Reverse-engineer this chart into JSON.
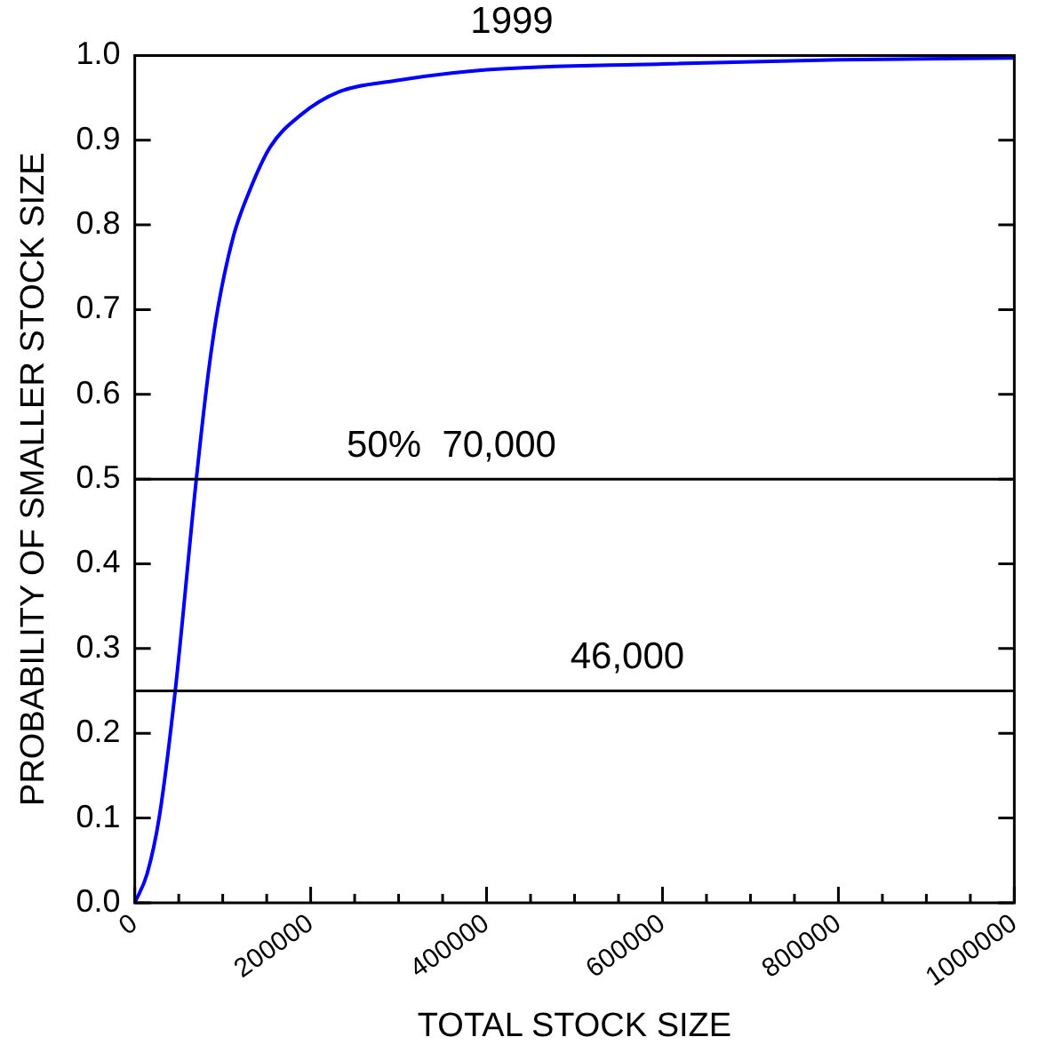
{
  "chart_data": {
    "type": "line",
    "title": "1999",
    "xlabel": "TOTAL STOCK SIZE",
    "ylabel": "PROBABILITY OF SMALLER STOCK SIZE",
    "x": [
      0,
      14000,
      28000,
      46000,
      70000,
      84000,
      94700,
      112000,
      130000,
      154000,
      189000,
      232000,
      295000,
      400000,
      600000,
      800000,
      1000000
    ],
    "series": [
      {
        "color": "#0000ff",
        "values": [
          0,
          0.034,
          0.102,
          0.25,
          0.5,
          0.628,
          0.703,
          0.786,
          0.839,
          0.892,
          0.93,
          0.957,
          0.97,
          0.983,
          0.99,
          0.995,
          0.997
        ]
      }
    ],
    "xlim": [
      0,
      1000000
    ],
    "xticks": [
      0,
      {
        "value": 50000,
        "label": null
      },
      {
        "value": 100000,
        "label": null
      },
      {
        "value": 150000,
        "label": null
      },
      200000,
      {
        "value": 250000,
        "label": null
      },
      {
        "value": 300000,
        "label": null
      },
      {
        "value": 350000,
        "label": null
      },
      400000,
      {
        "value": 450000,
        "label": null
      },
      {
        "value": 500000,
        "label": null
      },
      {
        "value": 550000,
        "label": null
      },
      600000,
      {
        "value": 650000,
        "label": null
      },
      {
        "value": 700000,
        "label": null
      },
      {
        "value": 750000,
        "label": null
      },
      800000,
      {
        "value": 850000,
        "label": null
      },
      {
        "value": 900000,
        "label": null
      },
      {
        "value": 950000,
        "label": null
      },
      1000000
    ],
    "ylim": [
      0,
      1
    ],
    "yticks": [
      {
        "value": 0,
        "label": "0.0"
      },
      0.1,
      0.2,
      0.3,
      0.4,
      0.5,
      0.6,
      0.7,
      0.8,
      0.9,
      {
        "value": 1,
        "label": "1.0"
      }
    ],
    "ref_lines": [
      {
        "axis": "y",
        "value": 0.5,
        "color": "#000000"
      },
      {
        "axis": "y",
        "value": 0.25,
        "color": "#000000"
      }
    ],
    "annotations": [
      {
        "text": "50%  70,000",
        "y": 0.5
      },
      {
        "text": "46,000",
        "y": 0.25
      }
    ],
    "grid": false,
    "legend": false,
    "marker": "none",
    "line_style": "solid"
  }
}
